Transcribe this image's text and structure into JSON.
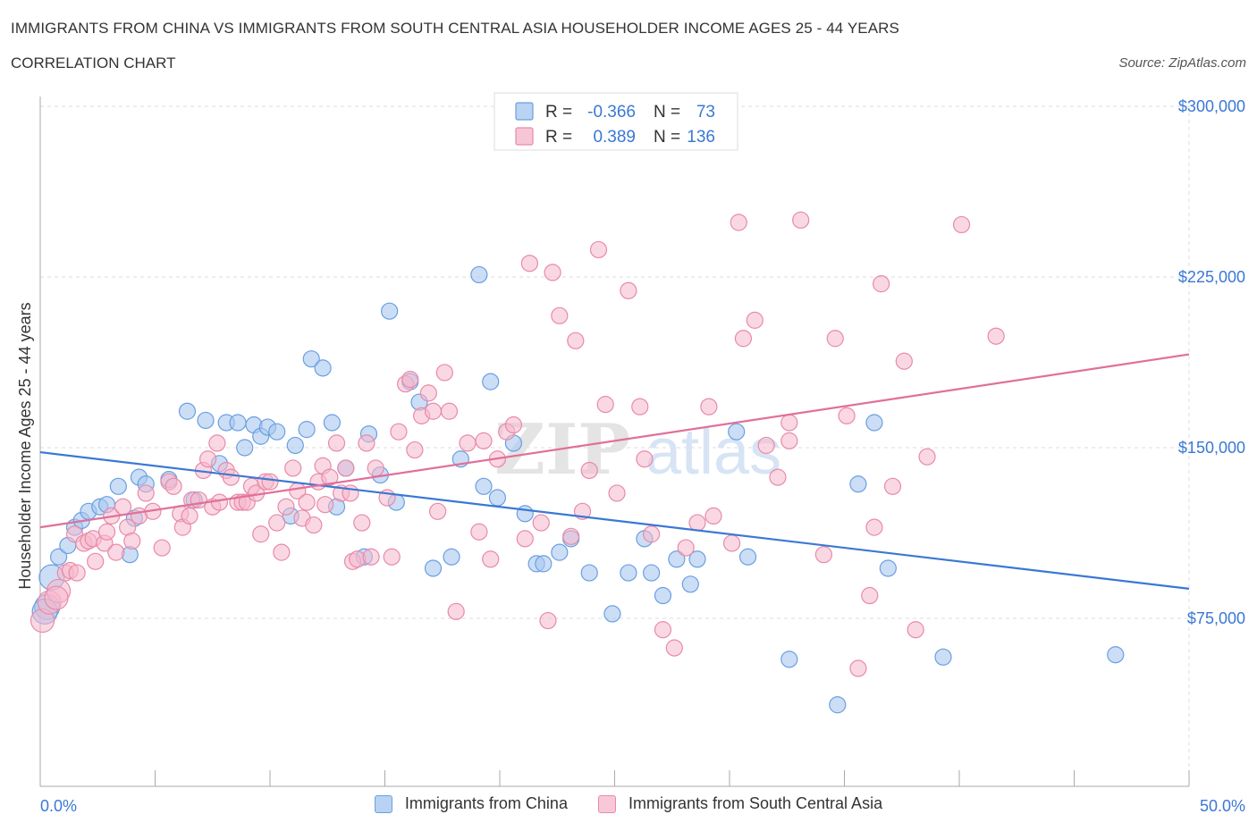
{
  "header": {
    "title": "IMMIGRANTS FROM CHINA VS IMMIGRANTS FROM SOUTH CENTRAL ASIA HOUSEHOLDER INCOME AGES 25 - 44 YEARS",
    "subtitle": "CORRELATION CHART",
    "source": "Source: ZipAtlas.com"
  },
  "watermark": "ZIPatlas",
  "legend_box": [
    {
      "r_label": "R =",
      "r_value": "-0.366",
      "n_label": "N =",
      "n_value": "73"
    },
    {
      "r_label": "R =",
      "r_value": "0.389",
      "n_label": "N = ",
      "n_value": "136"
    }
  ],
  "colors": {
    "china_fill": "#a8c8f0",
    "china_stroke": "#6a9fe0",
    "china_line": "#3a78d4",
    "sca_fill": "#f5b8cc",
    "sca_stroke": "#e88aa8",
    "sca_line": "#e0709a",
    "axis_text": "#3a78d4",
    "grid": "#dddddd"
  },
  "chart_data": {
    "type": "scatter",
    "title": "IMMIGRANTS FROM CHINA VS IMMIGRANTS FROM SOUTH CENTRAL ASIA HOUSEHOLDER INCOME AGES 25 - 44 YEARS",
    "subtitle": "CORRELATION CHART",
    "xlabel": "",
    "ylabel": "Householder Income Ages 25 - 44 years",
    "xlim": [
      0,
      50
    ],
    "ylim": [
      0,
      300000
    ],
    "x_tick_labels": [
      "0.0%",
      "50.0%"
    ],
    "y_tick_labels": [
      "$75,000",
      "$150,000",
      "$225,000",
      "$300,000"
    ],
    "y_ticks": [
      75000,
      150000,
      225000,
      300000
    ],
    "grid": true,
    "legend_position": "top-center",
    "series": [
      {
        "name": "Immigrants from China",
        "R": -0.366,
        "N": 73,
        "trend": {
          "x": [
            0,
            50
          ],
          "y": [
            148000,
            88000
          ]
        },
        "points": [
          [
            0.3,
            80000
          ],
          [
            0.5,
            93000
          ],
          [
            0.8,
            102000
          ],
          [
            1.2,
            107000
          ],
          [
            1.5,
            115000
          ],
          [
            1.8,
            118000
          ],
          [
            2.1,
            122000
          ],
          [
            2.6,
            124000
          ],
          [
            2.9,
            125000
          ],
          [
            3.4,
            133000
          ],
          [
            3.9,
            103000
          ],
          [
            4.1,
            119000
          ],
          [
            4.3,
            137000
          ],
          [
            4.6,
            134000
          ],
          [
            5.6,
            136000
          ],
          [
            6.4,
            166000
          ],
          [
            6.7,
            127000
          ],
          [
            7.2,
            162000
          ],
          [
            7.8,
            143000
          ],
          [
            8.1,
            161000
          ],
          [
            8.6,
            161000
          ],
          [
            8.9,
            150000
          ],
          [
            9.3,
            160000
          ],
          [
            9.6,
            155000
          ],
          [
            9.9,
            159000
          ],
          [
            10.3,
            157000
          ],
          [
            10.9,
            120000
          ],
          [
            11.1,
            151000
          ],
          [
            11.6,
            158000
          ],
          [
            11.8,
            189000
          ],
          [
            12.3,
            185000
          ],
          [
            12.7,
            161000
          ],
          [
            12.9,
            124000
          ],
          [
            13.3,
            141000
          ],
          [
            14.1,
            102000
          ],
          [
            14.3,
            156000
          ],
          [
            14.8,
            138000
          ],
          [
            15.2,
            210000
          ],
          [
            15.5,
            126000
          ],
          [
            16.1,
            179000
          ],
          [
            16.5,
            170000
          ],
          [
            17.1,
            97000
          ],
          [
            17.9,
            102000
          ],
          [
            18.3,
            145000
          ],
          [
            19.1,
            226000
          ],
          [
            19.3,
            133000
          ],
          [
            19.6,
            179000
          ],
          [
            19.9,
            128000
          ],
          [
            20.6,
            152000
          ],
          [
            21.1,
            121000
          ],
          [
            21.6,
            99000
          ],
          [
            21.9,
            99000
          ],
          [
            22.6,
            104000
          ],
          [
            23.1,
            110000
          ],
          [
            23.9,
            95000
          ],
          [
            24.9,
            77000
          ],
          [
            25.6,
            95000
          ],
          [
            26.3,
            110000
          ],
          [
            26.6,
            95000
          ],
          [
            27.1,
            85000
          ],
          [
            27.7,
            101000
          ],
          [
            28.3,
            90000
          ],
          [
            28.6,
            101000
          ],
          [
            30.3,
            157000
          ],
          [
            30.8,
            102000
          ],
          [
            32.6,
            57000
          ],
          [
            34.7,
            37000
          ],
          [
            35.6,
            134000
          ],
          [
            36.3,
            161000
          ],
          [
            36.9,
            97000
          ],
          [
            39.3,
            58000
          ],
          [
            46.8,
            59000
          ],
          [
            0.2,
            78000
          ]
        ]
      },
      {
        "name": "Immigrants from South Central Asia",
        "R": 0.389,
        "N": 136,
        "trend": {
          "x": [
            0,
            50
          ],
          "y": [
            115000,
            191000
          ]
        },
        "points": [
          [
            0.1,
            74000
          ],
          [
            0.4,
            82000
          ],
          [
            0.8,
            87000
          ],
          [
            0.7,
            84000
          ],
          [
            1.1,
            95000
          ],
          [
            1.3,
            96000
          ],
          [
            1.5,
            112000
          ],
          [
            1.6,
            95000
          ],
          [
            1.9,
            108000
          ],
          [
            2.1,
            109000
          ],
          [
            2.3,
            110000
          ],
          [
            2.4,
            100000
          ],
          [
            2.8,
            108000
          ],
          [
            2.9,
            113000
          ],
          [
            3.1,
            120000
          ],
          [
            3.3,
            104000
          ],
          [
            3.6,
            124000
          ],
          [
            3.8,
            115000
          ],
          [
            4.0,
            109000
          ],
          [
            4.3,
            120000
          ],
          [
            4.6,
            130000
          ],
          [
            4.9,
            122000
          ],
          [
            5.3,
            106000
          ],
          [
            5.6,
            135000
          ],
          [
            5.8,
            133000
          ],
          [
            6.1,
            121000
          ],
          [
            6.2,
            115000
          ],
          [
            6.5,
            120000
          ],
          [
            6.6,
            127000
          ],
          [
            6.9,
            127000
          ],
          [
            7.1,
            140000
          ],
          [
            7.3,
            145000
          ],
          [
            7.5,
            124000
          ],
          [
            7.7,
            152000
          ],
          [
            7.8,
            126000
          ],
          [
            8.1,
            140000
          ],
          [
            8.3,
            137000
          ],
          [
            8.6,
            126000
          ],
          [
            8.8,
            126000
          ],
          [
            9.0,
            126000
          ],
          [
            9.2,
            133000
          ],
          [
            9.4,
            130000
          ],
          [
            9.6,
            112000
          ],
          [
            9.8,
            135000
          ],
          [
            10.0,
            135000
          ],
          [
            10.3,
            117000
          ],
          [
            10.5,
            104000
          ],
          [
            10.7,
            124000
          ],
          [
            11.0,
            141000
          ],
          [
            11.2,
            131000
          ],
          [
            11.4,
            119000
          ],
          [
            11.6,
            126000
          ],
          [
            11.9,
            116000
          ],
          [
            12.1,
            135000
          ],
          [
            12.3,
            142000
          ],
          [
            12.4,
            125000
          ],
          [
            12.6,
            137000
          ],
          [
            12.9,
            152000
          ],
          [
            13.1,
            130000
          ],
          [
            13.3,
            141000
          ],
          [
            13.5,
            130000
          ],
          [
            13.6,
            100000
          ],
          [
            13.8,
            101000
          ],
          [
            14.0,
            117000
          ],
          [
            14.2,
            152000
          ],
          [
            14.4,
            102000
          ],
          [
            14.6,
            141000
          ],
          [
            15.1,
            128000
          ],
          [
            15.3,
            102000
          ],
          [
            15.6,
            157000
          ],
          [
            15.9,
            178000
          ],
          [
            16.1,
            180000
          ],
          [
            16.3,
            149000
          ],
          [
            16.6,
            164000
          ],
          [
            16.9,
            174000
          ],
          [
            17.1,
            166000
          ],
          [
            17.3,
            122000
          ],
          [
            17.6,
            183000
          ],
          [
            17.8,
            166000
          ],
          [
            18.1,
            78000
          ],
          [
            18.6,
            152000
          ],
          [
            19.1,
            113000
          ],
          [
            19.3,
            153000
          ],
          [
            19.6,
            101000
          ],
          [
            19.9,
            145000
          ],
          [
            20.3,
            157000
          ],
          [
            20.6,
            160000
          ],
          [
            21.1,
            110000
          ],
          [
            21.3,
            231000
          ],
          [
            21.8,
            117000
          ],
          [
            22.1,
            74000
          ],
          [
            22.3,
            227000
          ],
          [
            22.6,
            208000
          ],
          [
            23.1,
            111000
          ],
          [
            23.3,
            197000
          ],
          [
            23.6,
            122000
          ],
          [
            23.9,
            140000
          ],
          [
            24.3,
            237000
          ],
          [
            24.6,
            169000
          ],
          [
            25.1,
            130000
          ],
          [
            25.6,
            219000
          ],
          [
            26.1,
            168000
          ],
          [
            26.3,
            145000
          ],
          [
            26.6,
            112000
          ],
          [
            27.1,
            70000
          ],
          [
            27.6,
            62000
          ],
          [
            28.1,
            106000
          ],
          [
            28.6,
            117000
          ],
          [
            29.1,
            168000
          ],
          [
            29.3,
            120000
          ],
          [
            30.1,
            108000
          ],
          [
            30.6,
            198000
          ],
          [
            31.1,
            206000
          ],
          [
            31.6,
            151000
          ],
          [
            32.1,
            137000
          ],
          [
            32.6,
            153000
          ],
          [
            33.1,
            250000
          ],
          [
            34.1,
            103000
          ],
          [
            34.6,
            198000
          ],
          [
            35.1,
            164000
          ],
          [
            35.6,
            53000
          ],
          [
            36.1,
            85000
          ],
          [
            36.3,
            115000
          ],
          [
            36.6,
            222000
          ],
          [
            37.1,
            133000
          ],
          [
            37.6,
            188000
          ],
          [
            38.6,
            146000
          ],
          [
            38.1,
            70000
          ],
          [
            40.1,
            248000
          ],
          [
            41.6,
            199000
          ],
          [
            32.6,
            161000
          ],
          [
            30.4,
            249000
          ]
        ]
      }
    ]
  },
  "bottom_legend": [
    "Immigrants from China",
    "Immigrants from South Central Asia"
  ]
}
